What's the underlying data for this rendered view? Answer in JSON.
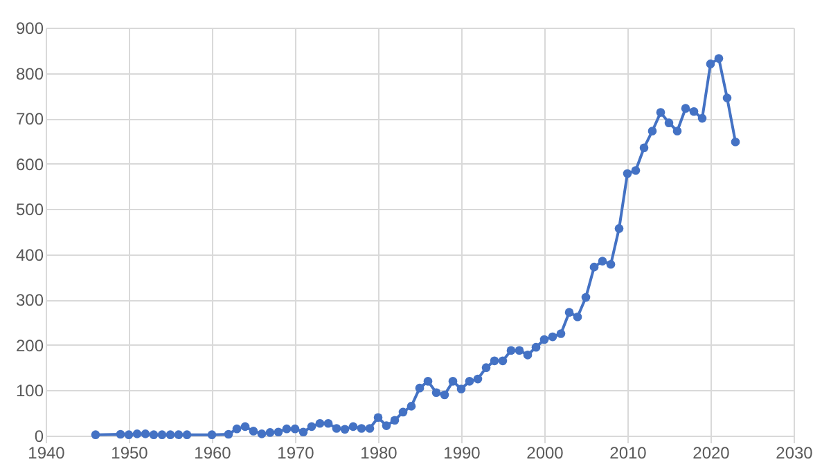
{
  "chart_data": {
    "type": "line",
    "x": [
      1946,
      1949,
      1950,
      1951,
      1952,
      1953,
      1954,
      1955,
      1956,
      1957,
      1960,
      1962,
      1963,
      1964,
      1965,
      1966,
      1967,
      1968,
      1969,
      1970,
      1971,
      1972,
      1973,
      1974,
      1975,
      1976,
      1977,
      1978,
      1979,
      1980,
      1981,
      1982,
      1983,
      1984,
      1985,
      1986,
      1987,
      1988,
      1989,
      1990,
      1991,
      1992,
      1993,
      1994,
      1995,
      1996,
      1997,
      1998,
      1999,
      2000,
      2001,
      2002,
      2003,
      2004,
      2005,
      2006,
      2007,
      2008,
      2009,
      2010,
      2011,
      2012,
      2013,
      2014,
      2015,
      2016,
      2017,
      2018,
      2019,
      2020,
      2021,
      2022,
      2023
    ],
    "series": [
      {
        "color": "#4472c4",
        "values": [
          2,
          3,
          2,
          4,
          4,
          2,
          2,
          2,
          2,
          2,
          2,
          3,
          15,
          20,
          10,
          4,
          7,
          8,
          15,
          15,
          8,
          20,
          27,
          27,
          16,
          14,
          20,
          16,
          16,
          40,
          22,
          34,
          52,
          65,
          105,
          120,
          95,
          90,
          120,
          103,
          120,
          125,
          150,
          165,
          165,
          188,
          188,
          178,
          195,
          212,
          218,
          225,
          272,
          262,
          305,
          372,
          385,
          378,
          457,
          578,
          585,
          635,
          672,
          713,
          690,
          672,
          722,
          715,
          700,
          820,
          832,
          745,
          648
        ]
      }
    ],
    "xlim": [
      1940,
      2030
    ],
    "xticks": [
      1940,
      1950,
      1960,
      1970,
      1980,
      1990,
      2000,
      2010,
      2020,
      2030
    ],
    "ylim": [
      0,
      900
    ],
    "yticks": [
      0,
      100,
      200,
      300,
      400,
      500,
      600,
      700,
      800,
      900
    ],
    "grid": true,
    "marker": "circle",
    "line_style": "solid",
    "legend": false
  }
}
